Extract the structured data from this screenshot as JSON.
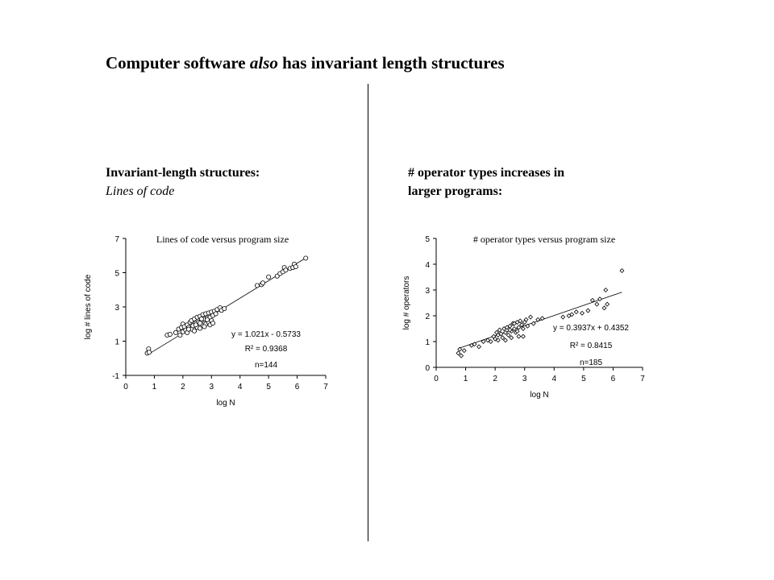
{
  "title": {
    "before": "Computer software ",
    "emphasis": "also",
    "after": " has invariant length structures"
  },
  "left_panel": {
    "heading_bold": "Invariant-length structures:",
    "heading_italic": "Lines of code"
  },
  "right_panel": {
    "heading_line1": "# operator types increases in",
    "heading_line2": "larger programs:"
  },
  "chart_data": [
    {
      "type": "scatter",
      "title": "Lines of code versus program size",
      "xlabel": "log N",
      "ylabel": "log # lines of code",
      "xlim": [
        0,
        7
      ],
      "ylim": [
        -1,
        7
      ],
      "xticks": [
        "0",
        "1",
        "2",
        "3",
        "4",
        "5",
        "6",
        "7"
      ],
      "yticks": [
        "-1",
        "1",
        "3",
        "5",
        "7"
      ],
      "ytick_values": [
        -1,
        1,
        3,
        5,
        7
      ],
      "marker": "circle",
      "trendline": {
        "slope": 1.021,
        "intercept": -0.5733,
        "x_range": [
          0.75,
          6.3
        ]
      },
      "annotations": [
        "y = 1.021x - 0.5733",
        "R² = 0.9368",
        "n=144"
      ],
      "points": [
        [
          0.75,
          0.3
        ],
        [
          0.8,
          0.55
        ],
        [
          0.82,
          0.35
        ],
        [
          1.45,
          1.35
        ],
        [
          1.55,
          1.4
        ],
        [
          1.75,
          1.5
        ],
        [
          1.85,
          1.7
        ],
        [
          1.9,
          1.35
        ],
        [
          1.95,
          1.8
        ],
        [
          2.0,
          1.55
        ],
        [
          2.0,
          2.0
        ],
        [
          2.05,
          1.85
        ],
        [
          2.1,
          1.65
        ],
        [
          2.15,
          1.95
        ],
        [
          2.15,
          1.5
        ],
        [
          2.2,
          1.8
        ],
        [
          2.25,
          2.1
        ],
        [
          2.3,
          1.7
        ],
        [
          2.3,
          2.2
        ],
        [
          2.35,
          1.9
        ],
        [
          2.4,
          1.6
        ],
        [
          2.4,
          2.3
        ],
        [
          2.45,
          2.05
        ],
        [
          2.5,
          1.8
        ],
        [
          2.5,
          2.4
        ],
        [
          2.55,
          2.1
        ],
        [
          2.6,
          1.75
        ],
        [
          2.6,
          2.45
        ],
        [
          2.65,
          2.2
        ],
        [
          2.7,
          1.9
        ],
        [
          2.7,
          2.55
        ],
        [
          2.75,
          2.3
        ],
        [
          2.8,
          2.0
        ],
        [
          2.8,
          2.6
        ],
        [
          2.85,
          2.35
        ],
        [
          2.9,
          2.1
        ],
        [
          2.9,
          2.65
        ],
        [
          2.95,
          2.4
        ],
        [
          3.0,
          2.2
        ],
        [
          3.0,
          2.7
        ],
        [
          3.05,
          2.5
        ],
        [
          3.1,
          2.75
        ],
        [
          3.15,
          2.6
        ],
        [
          3.2,
          2.85
        ],
        [
          3.3,
          2.95
        ],
        [
          3.35,
          2.8
        ],
        [
          3.45,
          2.9
        ],
        [
          4.6,
          4.25
        ],
        [
          4.75,
          4.3
        ],
        [
          4.8,
          4.4
        ],
        [
          5.0,
          4.75
        ],
        [
          5.3,
          4.8
        ],
        [
          5.4,
          4.95
        ],
        [
          5.5,
          5.05
        ],
        [
          5.55,
          5.3
        ],
        [
          5.6,
          5.15
        ],
        [
          5.75,
          5.25
        ],
        [
          5.85,
          5.3
        ],
        [
          5.9,
          5.5
        ],
        [
          5.95,
          5.35
        ],
        [
          6.3,
          5.85
        ],
        [
          2.6,
          2.05
        ],
        [
          2.75,
          1.85
        ],
        [
          2.95,
          1.95
        ],
        [
          2.2,
          1.7
        ],
        [
          2.85,
          2.25
        ],
        [
          3.05,
          2.05
        ],
        [
          2.45,
          1.95
        ],
        [
          2.65,
          2.3
        ]
      ]
    },
    {
      "type": "scatter",
      "title": "# operator types versus program size",
      "xlabel": "log N",
      "ylabel": "log # operators",
      "xlim": [
        0,
        7
      ],
      "ylim": [
        0,
        5
      ],
      "xticks": [
        "0",
        "1",
        "2",
        "3",
        "4",
        "5",
        "6",
        "7"
      ],
      "yticks": [
        "0",
        "1",
        "2",
        "3",
        "4",
        "5"
      ],
      "ytick_values": [
        0,
        1,
        2,
        3,
        4,
        5
      ],
      "marker": "diamond",
      "trendline": {
        "slope": 0.3937,
        "intercept": 0.4352,
        "x_range": [
          0.75,
          6.3
        ]
      },
      "annotations": [
        "y = 0.3937x + 0.4352",
        "R² = 0.8415",
        "n=185"
      ],
      "points": [
        [
          0.75,
          0.55
        ],
        [
          0.8,
          0.7
        ],
        [
          0.85,
          0.45
        ],
        [
          0.95,
          0.65
        ],
        [
          1.2,
          0.85
        ],
        [
          1.3,
          0.9
        ],
        [
          1.45,
          0.8
        ],
        [
          1.6,
          1.0
        ],
        [
          1.75,
          1.05
        ],
        [
          1.85,
          1.0
        ],
        [
          1.95,
          1.2
        ],
        [
          2.0,
          1.1
        ],
        [
          2.05,
          1.35
        ],
        [
          2.1,
          1.25
        ],
        [
          2.15,
          1.45
        ],
        [
          2.2,
          1.3
        ],
        [
          2.25,
          1.15
        ],
        [
          2.3,
          1.5
        ],
        [
          2.35,
          1.35
        ],
        [
          2.4,
          1.55
        ],
        [
          2.45,
          1.25
        ],
        [
          2.5,
          1.6
        ],
        [
          2.55,
          1.4
        ],
        [
          2.6,
          1.7
        ],
        [
          2.65,
          1.5
        ],
        [
          2.7,
          1.35
        ],
        [
          2.75,
          1.75
        ],
        [
          2.8,
          1.55
        ],
        [
          2.85,
          1.8
        ],
        [
          2.9,
          1.65
        ],
        [
          2.95,
          1.2
        ],
        [
          3.0,
          1.75
        ],
        [
          3.05,
          1.85
        ],
        [
          3.1,
          1.6
        ],
        [
          3.2,
          1.95
        ],
        [
          3.3,
          1.7
        ],
        [
          3.45,
          1.85
        ],
        [
          3.6,
          1.9
        ],
        [
          4.3,
          1.95
        ],
        [
          4.5,
          2.0
        ],
        [
          4.6,
          2.05
        ],
        [
          4.75,
          2.15
        ],
        [
          4.95,
          2.1
        ],
        [
          5.15,
          2.2
        ],
        [
          5.3,
          2.6
        ],
        [
          5.45,
          2.45
        ],
        [
          5.55,
          2.65
        ],
        [
          5.7,
          2.3
        ],
        [
          5.75,
          3.0
        ],
        [
          5.8,
          2.45
        ],
        [
          6.3,
          3.75
        ],
        [
          2.55,
          1.15
        ],
        [
          2.8,
          1.2
        ],
        [
          2.35,
          1.05
        ],
        [
          2.65,
          1.7
        ],
        [
          2.95,
          1.5
        ],
        [
          2.1,
          1.05
        ],
        [
          2.5,
          1.45
        ],
        [
          2.75,
          1.4
        ]
      ]
    }
  ]
}
